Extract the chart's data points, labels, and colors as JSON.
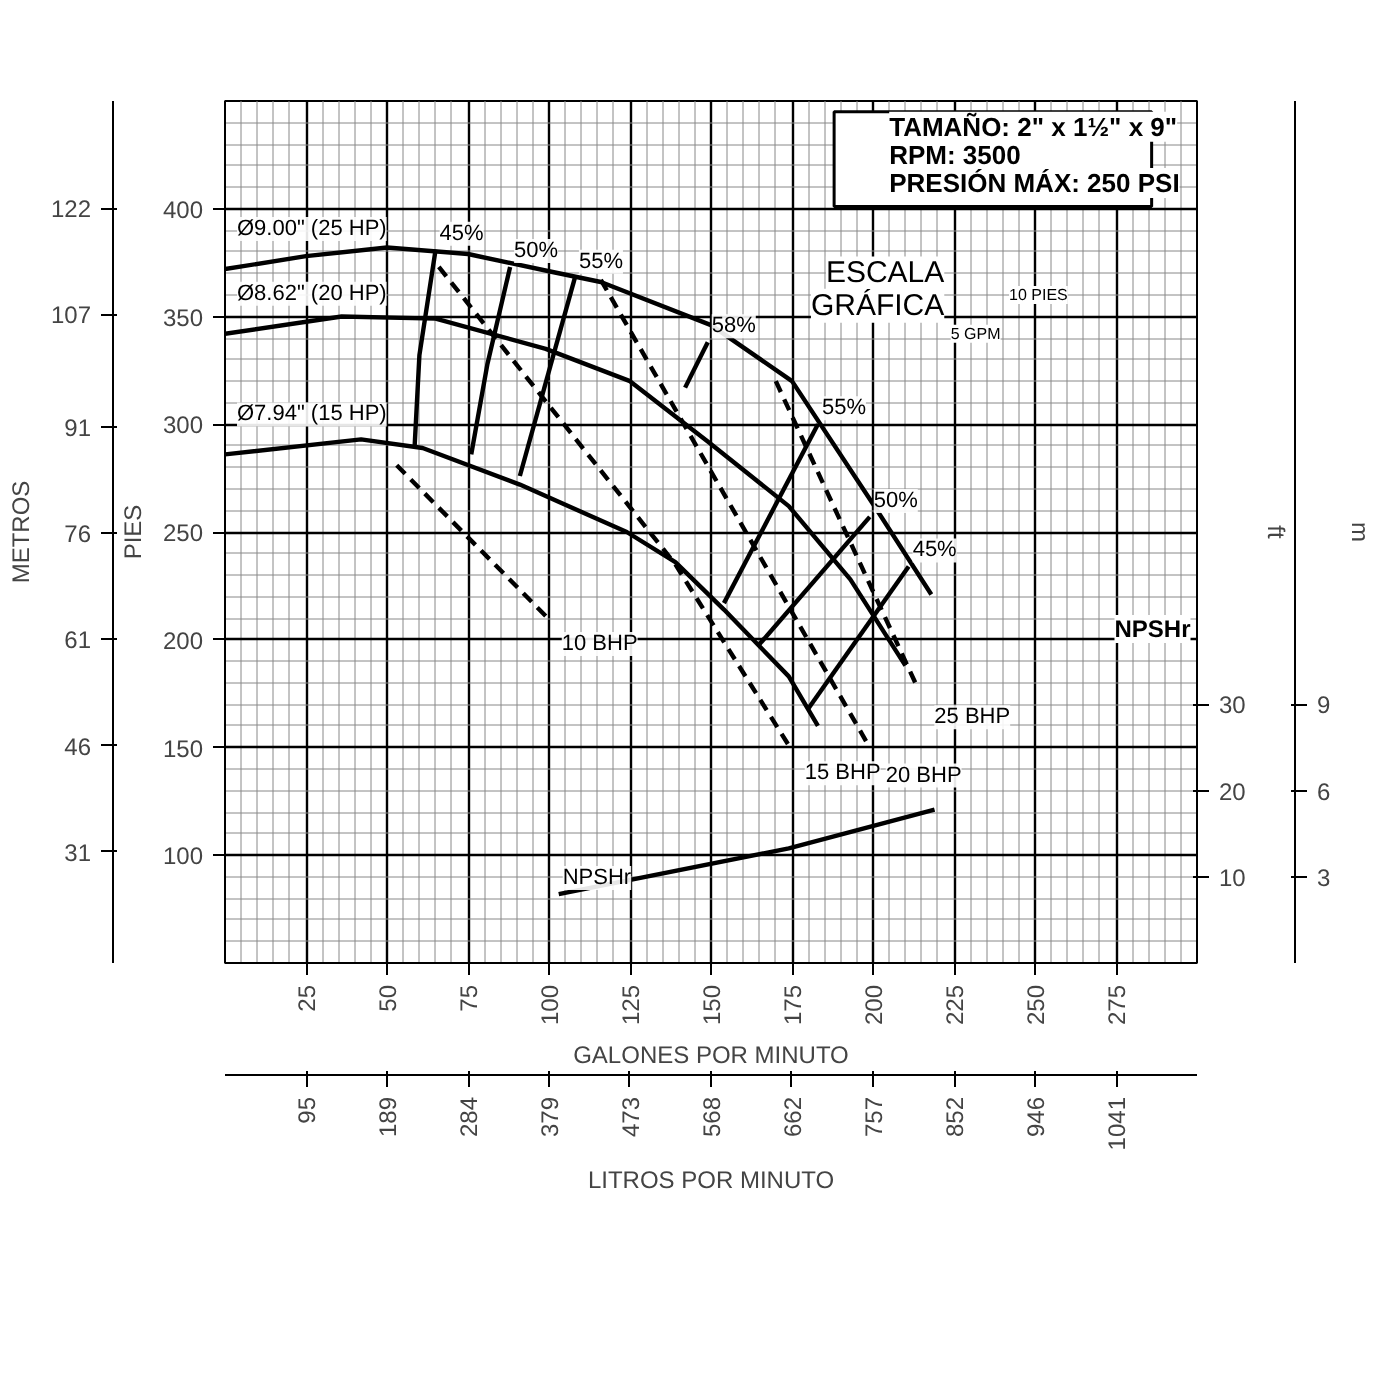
{
  "chart_data": {
    "type": "line",
    "xlabel": "GALONES POR MINUTO",
    "x2label": "LITROS POR MINUTO",
    "ylabel": "PIES",
    "y3label": "METROS",
    "xlim": [
      0,
      300
    ],
    "xticks": [
      25,
      50,
      75,
      100,
      125,
      150,
      175,
      200,
      225,
      250,
      275
    ],
    "x2lim": [
      0,
      1135.6
    ],
    "x2ticks": [
      95,
      189,
      284,
      379,
      473,
      568,
      662,
      757,
      852,
      946,
      1041
    ],
    "ylim": [
      50,
      450
    ],
    "yticks": [
      100,
      150,
      200,
      250,
      300,
      350,
      400
    ],
    "y3lim": [
      15.24,
      137.16
    ],
    "y3ticks": [
      31,
      46,
      61,
      76,
      91,
      107,
      122
    ],
    "y2lim": [
      0,
      100
    ],
    "y2ticks": [
      10,
      20,
      30
    ],
    "grid": true,
    "legend": false,
    "marker": "none",
    "series": [
      {
        "name": "Ø9.00\" (25 HP)",
        "color": "#000000",
        "line_style": "solid",
        "x": [
          0,
          25,
          50,
          75,
          100,
          116,
          150,
          175,
          200,
          218
        ],
        "values": [
          372,
          378,
          382,
          379,
          371,
          366,
          346,
          320,
          263,
          221
        ]
      },
      {
        "name": "Ø8.62\" (20 HP)",
        "color": "#000000",
        "line_style": "solid",
        "x": [
          0,
          36,
          65,
          99,
          125,
          149,
          174,
          193,
          210
        ],
        "values": [
          342,
          350,
          349,
          335,
          320,
          292,
          262,
          228,
          188
        ]
      },
      {
        "name": "Ø7.94\" (15 HP)",
        "color": "#000000",
        "line_style": "solid",
        "x": [
          0,
          42,
          61,
          91,
          124,
          139,
          154,
          174,
          183
        ],
        "values": [
          286,
          293,
          289,
          272,
          250,
          236,
          214,
          183,
          160
        ]
      },
      {
        "name": "45%",
        "color": "#000000",
        "line_style": "solid",
        "x": [
          65,
          60,
          58.5
        ],
        "values": [
          381,
          332,
          289
        ]
      },
      {
        "name": "50%",
        "color": "#000000",
        "line_style": "solid",
        "x": [
          88,
          81,
          76
        ],
        "values": [
          373,
          328,
          286
        ]
      },
      {
        "name": "55%",
        "color": "#000000",
        "line_style": "solid",
        "x": [
          108,
          91
        ],
        "values": [
          368,
          276
        ]
      },
      {
        "name": "58%",
        "color": "#000000",
        "line_style": "solid",
        "x": [
          149,
          142
        ],
        "values": [
          338,
          317
        ]
      },
      {
        "name": "55%",
        "color": "#000000",
        "line_style": "solid",
        "x": [
          183,
          154
        ],
        "values": [
          300,
          217
        ]
      },
      {
        "name": "50%",
        "color": "#000000",
        "line_style": "solid",
        "x": [
          199,
          165
        ],
        "values": [
          257,
          198
        ]
      },
      {
        "name": "45%",
        "color": "#000000",
        "line_style": "solid",
        "x": [
          211,
          180
        ],
        "values": [
          234,
          168
        ]
      },
      {
        "name": "10 BHP",
        "color": "#000000",
        "line_style": "dashed",
        "x": [
          53,
          99
        ],
        "values": [
          281,
          211
        ]
      },
      {
        "name": "15 BHP",
        "color": "#000000",
        "line_style": "dashed",
        "x": [
          66,
          139,
          174
        ],
        "values": [
          373,
          235,
          151
        ]
      },
      {
        "name": "20 BHP",
        "color": "#000000",
        "line_style": "dashed",
        "x": [
          116,
          199
        ],
        "values": [
          367,
          150
        ]
      },
      {
        "name": "25 BHP",
        "color": "#000000",
        "line_style": "dashed",
        "x": [
          170,
          214
        ],
        "values": [
          320,
          177
        ]
      },
      {
        "name": "NPSHr",
        "color": "#000000",
        "line_style": "solid",
        "axis": "y2",
        "x": [
          103,
          174,
          219
        ],
        "values": [
          8.0,
          13.3,
          17.8
        ]
      }
    ],
    "annotations": [
      "TAMAÑO: 2\" x 1½\" x 9\"",
      "RPM: 3500",
      "PRESIÓN MÁX: 250 PSI",
      "ESCALA",
      "GRÁFICA",
      "10 PIES",
      "5 GPM",
      "NPSHr",
      "ft",
      "m",
      "3",
      "6",
      "9"
    ]
  }
}
